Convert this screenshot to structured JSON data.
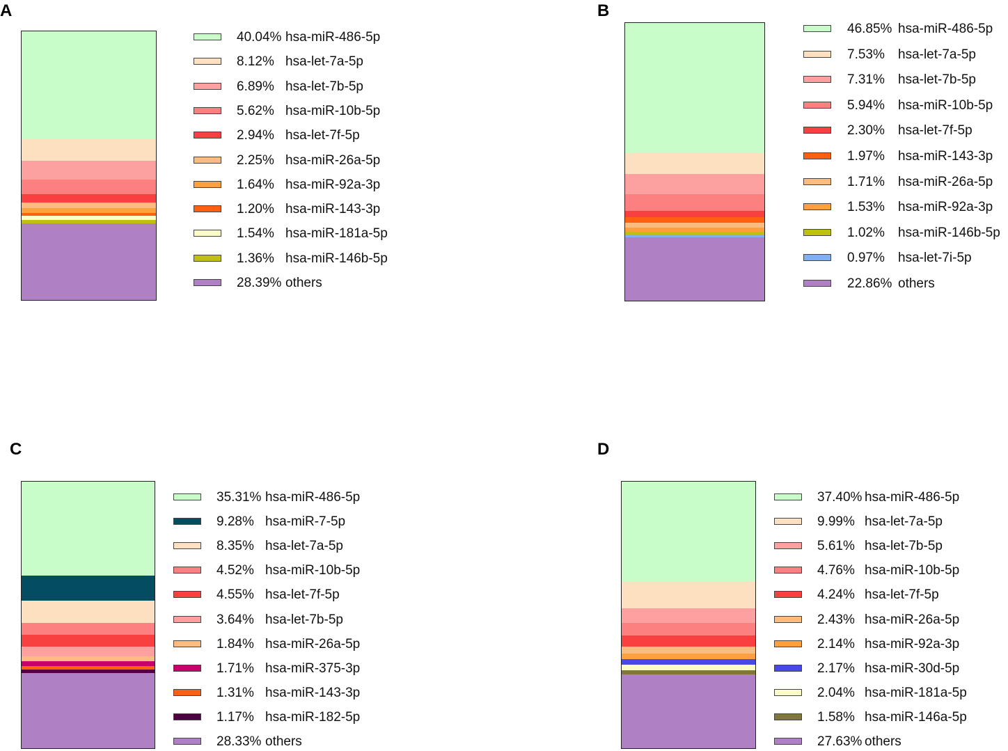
{
  "chart_data": [
    {
      "type": "stacked-bar",
      "panel_label": "A",
      "series": [
        {
          "name": "hsa-miR-486-5p",
          "percent": "40.04%",
          "value": 40.04,
          "color": "#c8fcc8"
        },
        {
          "name": "hsa-let-7a-5p",
          "percent": "8.12%",
          "value": 8.12,
          "color": "#fde0c0"
        },
        {
          "name": "hsa-let-7b-5p",
          "percent": "6.89%",
          "value": 6.89,
          "color": "#fda0a0"
        },
        {
          "name": "hsa-miR-10b-5p",
          "percent": "5.62%",
          "value": 5.62,
          "color": "#fc8080"
        },
        {
          "name": "hsa-let-7f-5p",
          "percent": "2.94%",
          "value": 2.94,
          "color": "#f84040"
        },
        {
          "name": "hsa-miR-26a-5p",
          "percent": "2.25%",
          "value": 2.25,
          "color": "#fcbc80"
        },
        {
          "name": "hsa-miR-92a-3p",
          "percent": "1.64%",
          "value": 1.64,
          "color": "#fca040"
        },
        {
          "name": "hsa-miR-143-3p",
          "percent": "1.20%",
          "value": 1.2,
          "color": "#fc6010"
        },
        {
          "name": "hsa-miR-181a-5p",
          "percent": "1.54%",
          "value": 1.54,
          "color": "#fcfcc8"
        },
        {
          "name": "hsa-miR-146b-5p",
          "percent": "1.36%",
          "value": 1.36,
          "color": "#c0c010"
        },
        {
          "name": "others",
          "percent": "28.39%",
          "value": 28.39,
          "color": "#b080c4"
        }
      ]
    },
    {
      "type": "stacked-bar",
      "panel_label": "B",
      "series": [
        {
          "name": "hsa-miR-486-5p",
          "percent": "46.85%",
          "value": 46.85,
          "color": "#c8fcc8"
        },
        {
          "name": "hsa-let-7a-5p",
          "percent": "7.53%",
          "value": 7.53,
          "color": "#fde0c0"
        },
        {
          "name": "hsa-let-7b-5p",
          "percent": "7.31%",
          "value": 7.31,
          "color": "#fda0a0"
        },
        {
          "name": "hsa-miR-10b-5p",
          "percent": "5.94%",
          "value": 5.94,
          "color": "#fc8080"
        },
        {
          "name": "hsa-let-7f-5p",
          "percent": "2.30%",
          "value": 2.3,
          "color": "#f84040"
        },
        {
          "name": "hsa-miR-143-3p",
          "percent": "1.97%",
          "value": 1.97,
          "color": "#fc6010"
        },
        {
          "name": "hsa-miR-26a-5p",
          "percent": "1.71%",
          "value": 1.71,
          "color": "#fcbc80"
        },
        {
          "name": "hsa-miR-92a-3p",
          "percent": "1.53%",
          "value": 1.53,
          "color": "#fca040"
        },
        {
          "name": "hsa-miR-146b-5p",
          "percent": "1.02%",
          "value": 1.02,
          "color": "#c0c010"
        },
        {
          "name": "hsa-let-7i-5p",
          "percent": "0.97%",
          "value": 0.97,
          "color": "#80b0f0"
        },
        {
          "name": "others",
          "percent": "22.86%",
          "value": 22.86,
          "color": "#b080c4"
        }
      ]
    },
    {
      "type": "stacked-bar",
      "panel_label": "C",
      "series": [
        {
          "name": "hsa-miR-486-5p",
          "percent": "35.31%",
          "value": 35.31,
          "color": "#c8fcc8"
        },
        {
          "name": "hsa-miR-7-5p",
          "percent": "9.28%",
          "value": 9.28,
          "color": "#044c60"
        },
        {
          "name": "hsa-let-7a-5p",
          "percent": "8.35%",
          "value": 8.35,
          "color": "#fde0c0"
        },
        {
          "name": "hsa-miR-10b-5p",
          "percent": "4.52%",
          "value": 4.52,
          "color": "#fc8080"
        },
        {
          "name": "hsa-let-7f-5p",
          "percent": "4.55%",
          "value": 4.55,
          "color": "#f84040"
        },
        {
          "name": "hsa-let-7b-5p",
          "percent": "3.64%",
          "value": 3.64,
          "color": "#fda0a0"
        },
        {
          "name": "hsa-miR-26a-5p",
          "percent": "1.84%",
          "value": 1.84,
          "color": "#fcbc80"
        },
        {
          "name": "hsa-miR-375-3p",
          "percent": "1.71%",
          "value": 1.71,
          "color": "#c8006c"
        },
        {
          "name": "hsa-miR-143-3p",
          "percent": "1.31%",
          "value": 1.31,
          "color": "#fc6010"
        },
        {
          "name": "hsa-miR-182-5p",
          "percent": "1.17%",
          "value": 1.17,
          "color": "#500040"
        },
        {
          "name": "others",
          "percent": "28.33%",
          "value": 28.33,
          "color": "#b080c4"
        }
      ]
    },
    {
      "type": "stacked-bar",
      "panel_label": "D",
      "series": [
        {
          "name": "hsa-miR-486-5p",
          "percent": "37.40%",
          "value": 37.4,
          "color": "#c8fcc8"
        },
        {
          "name": "hsa-let-7a-5p",
          "percent": "9.99%",
          "value": 9.99,
          "color": "#fde0c0"
        },
        {
          "name": "hsa-let-7b-5p",
          "percent": "5.61%",
          "value": 5.61,
          "color": "#fda0a0"
        },
        {
          "name": "hsa-miR-10b-5p",
          "percent": "4.76%",
          "value": 4.76,
          "color": "#fc8080"
        },
        {
          "name": "hsa-let-7f-5p",
          "percent": "4.24%",
          "value": 4.24,
          "color": "#f84040"
        },
        {
          "name": "hsa-miR-26a-5p",
          "percent": "2.43%",
          "value": 2.43,
          "color": "#fcbc80"
        },
        {
          "name": "hsa-miR-92a-3p",
          "percent": "2.14%",
          "value": 2.14,
          "color": "#fca040"
        },
        {
          "name": "hsa-miR-30d-5p",
          "percent": "2.17%",
          "value": 2.17,
          "color": "#4848e8"
        },
        {
          "name": "hsa-miR-181a-5p",
          "percent": "2.04%",
          "value": 2.04,
          "color": "#fcfcc8"
        },
        {
          "name": "hsa-miR-146a-5p",
          "percent": "1.58%",
          "value": 1.58,
          "color": "#807838"
        },
        {
          "name": "others",
          "percent": "27.63%",
          "value": 27.63,
          "color": "#b080c4"
        }
      ]
    }
  ]
}
